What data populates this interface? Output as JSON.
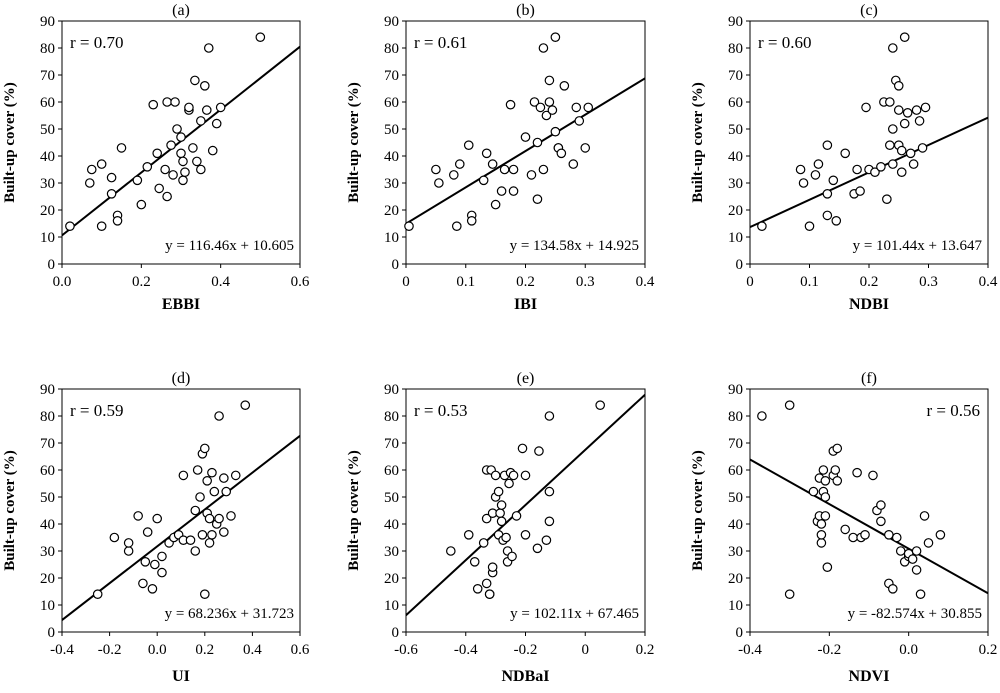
{
  "chart_data": [
    {
      "type": "scatter",
      "panel": "(a)",
      "xlabel": "EBBI",
      "ylabel": "Built-up cover (%)",
      "xlim": [
        0,
        0.6
      ],
      "ylim": [
        0,
        90
      ],
      "xticks": [
        "0.0",
        "0.2",
        "0.4",
        "0.6"
      ],
      "yticks": [
        "0",
        "10",
        "20",
        "30",
        "40",
        "50",
        "60",
        "70",
        "80",
        "90"
      ],
      "r_label": "r = 0.70",
      "equation": "y = 116.46x + 10.605",
      "slope": 116.46,
      "intercept": 10.605,
      "points": [
        [
          0.02,
          14
        ],
        [
          0.07,
          30
        ],
        [
          0.075,
          35
        ],
        [
          0.1,
          37
        ],
        [
          0.1,
          14
        ],
        [
          0.125,
          32
        ],
        [
          0.125,
          26
        ],
        [
          0.14,
          18
        ],
        [
          0.14,
          16
        ],
        [
          0.15,
          43
        ],
        [
          0.19,
          31
        ],
        [
          0.2,
          22
        ],
        [
          0.215,
          36
        ],
        [
          0.23,
          59
        ],
        [
          0.24,
          41
        ],
        [
          0.245,
          28
        ],
        [
          0.26,
          35
        ],
        [
          0.265,
          60
        ],
        [
          0.265,
          25
        ],
        [
          0.275,
          44
        ],
        [
          0.28,
          33
        ],
        [
          0.285,
          60
        ],
        [
          0.29,
          50
        ],
        [
          0.3,
          47
        ],
        [
          0.3,
          41
        ],
        [
          0.305,
          38
        ],
        [
          0.305,
          31
        ],
        [
          0.31,
          34
        ],
        [
          0.32,
          57
        ],
        [
          0.32,
          58
        ],
        [
          0.33,
          43
        ],
        [
          0.335,
          68
        ],
        [
          0.34,
          38
        ],
        [
          0.35,
          35
        ],
        [
          0.35,
          53
        ],
        [
          0.36,
          66
        ],
        [
          0.365,
          57
        ],
        [
          0.37,
          80
        ],
        [
          0.38,
          42
        ],
        [
          0.39,
          52
        ],
        [
          0.4,
          58
        ],
        [
          0.5,
          84
        ]
      ]
    },
    {
      "type": "scatter",
      "panel": "(b)",
      "xlabel": "IBI",
      "ylabel": "Built-up cover (%)",
      "xlim": [
        0,
        0.4
      ],
      "ylim": [
        0,
        90
      ],
      "xticks": [
        "0",
        "0.1",
        "0.2",
        "0.3",
        "0.4"
      ],
      "yticks": [
        "0",
        "10",
        "20",
        "30",
        "40",
        "50",
        "60",
        "70",
        "80",
        "90"
      ],
      "r_label": "r = 0.61",
      "equation": "y = 134.58x + 14.925",
      "slope": 134.58,
      "intercept": 14.925,
      "points": [
        [
          0.005,
          14
        ],
        [
          0.05,
          35
        ],
        [
          0.055,
          30
        ],
        [
          0.08,
          33
        ],
        [
          0.09,
          37
        ],
        [
          0.085,
          14
        ],
        [
          0.105,
          44
        ],
        [
          0.11,
          18
        ],
        [
          0.11,
          16
        ],
        [
          0.13,
          31
        ],
        [
          0.135,
          41
        ],
        [
          0.145,
          37
        ],
        [
          0.15,
          22
        ],
        [
          0.16,
          27
        ],
        [
          0.165,
          35
        ],
        [
          0.175,
          59
        ],
        [
          0.18,
          27
        ],
        [
          0.18,
          35
        ],
        [
          0.2,
          47
        ],
        [
          0.21,
          33
        ],
        [
          0.215,
          60
        ],
        [
          0.22,
          45
        ],
        [
          0.22,
          24
        ],
        [
          0.225,
          58
        ],
        [
          0.23,
          35
        ],
        [
          0.23,
          80
        ],
        [
          0.235,
          55
        ],
        [
          0.24,
          68
        ],
        [
          0.24,
          60
        ],
        [
          0.245,
          57
        ],
        [
          0.25,
          84
        ],
        [
          0.25,
          49
        ],
        [
          0.255,
          43
        ],
        [
          0.255,
          43
        ],
        [
          0.26,
          41
        ],
        [
          0.265,
          66
        ],
        [
          0.28,
          37
        ],
        [
          0.285,
          58
        ],
        [
          0.29,
          53
        ],
        [
          0.3,
          43
        ],
        [
          0.305,
          58
        ]
      ]
    },
    {
      "type": "scatter",
      "panel": "(c)",
      "xlabel": "NDBI",
      "ylabel": "Built-up cover (%)",
      "xlim": [
        0,
        0.4
      ],
      "ylim": [
        0,
        90
      ],
      "xticks": [
        "0",
        "0.1",
        "0.2",
        "0.3",
        "0.4"
      ],
      "yticks": [
        "0",
        "10",
        "20",
        "30",
        "40",
        "50",
        "60",
        "70",
        "80",
        "90"
      ],
      "r_label": "r = 0.60",
      "equation": "y = 101.44x + 13.647",
      "slope": 101.44,
      "intercept": 13.647,
      "points": [
        [
          0.02,
          14
        ],
        [
          0.085,
          35
        ],
        [
          0.09,
          30
        ],
        [
          0.1,
          14
        ],
        [
          0.11,
          33
        ],
        [
          0.115,
          37
        ],
        [
          0.13,
          44
        ],
        [
          0.13,
          18
        ],
        [
          0.13,
          26
        ],
        [
          0.14,
          31
        ],
        [
          0.145,
          16
        ],
        [
          0.16,
          41
        ],
        [
          0.175,
          26
        ],
        [
          0.18,
          35
        ],
        [
          0.185,
          27
        ],
        [
          0.195,
          58
        ],
        [
          0.2,
          35
        ],
        [
          0.21,
          34
        ],
        [
          0.22,
          36
        ],
        [
          0.225,
          60
        ],
        [
          0.23,
          24
        ],
        [
          0.235,
          60
        ],
        [
          0.235,
          44
        ],
        [
          0.24,
          50
        ],
        [
          0.24,
          80
        ],
        [
          0.24,
          37
        ],
        [
          0.245,
          68
        ],
        [
          0.25,
          66
        ],
        [
          0.25,
          44
        ],
        [
          0.25,
          57
        ],
        [
          0.255,
          34
        ],
        [
          0.255,
          42
        ],
        [
          0.26,
          84
        ],
        [
          0.26,
          52
        ],
        [
          0.265,
          56
        ],
        [
          0.27,
          41
        ],
        [
          0.275,
          37
        ],
        [
          0.28,
          57
        ],
        [
          0.285,
          53
        ],
        [
          0.29,
          43
        ],
        [
          0.295,
          58
        ]
      ]
    },
    {
      "type": "scatter",
      "panel": "(d)",
      "xlabel": "UI",
      "ylabel": "Built-up cover (%)",
      "xlim": [
        -0.4,
        0.6
      ],
      "ylim": [
        0,
        90
      ],
      "xticks": [
        "-0.4",
        "-0.2",
        "0.0",
        "0.2",
        "0.4",
        "0.6"
      ],
      "yticks": [
        "0",
        "10",
        "20",
        "30",
        "40",
        "50",
        "60",
        "70",
        "80",
        "90"
      ],
      "r_label": "r = 0.59",
      "equation": "y = 68.236x + 31.723",
      "slope": 68.236,
      "intercept": 31.723,
      "points": [
        [
          -0.25,
          14
        ],
        [
          -0.18,
          35
        ],
        [
          -0.12,
          30
        ],
        [
          -0.12,
          33
        ],
        [
          -0.08,
          43
        ],
        [
          -0.06,
          18
        ],
        [
          -0.05,
          26
        ],
        [
          -0.04,
          37
        ],
        [
          -0.02,
          16
        ],
        [
          -0.01,
          25
        ],
        [
          0.0,
          42
        ],
        [
          0.02,
          28
        ],
        [
          0.02,
          22
        ],
        [
          0.05,
          33
        ],
        [
          0.07,
          35
        ],
        [
          0.09,
          36
        ],
        [
          0.11,
          34
        ],
        [
          0.11,
          58
        ],
        [
          0.14,
          34
        ],
        [
          0.16,
          30
        ],
        [
          0.16,
          45
        ],
        [
          0.17,
          60
        ],
        [
          0.18,
          50
        ],
        [
          0.19,
          66
        ],
        [
          0.19,
          36
        ],
        [
          0.2,
          68
        ],
        [
          0.2,
          14
        ],
        [
          0.21,
          56
        ],
        [
          0.21,
          44
        ],
        [
          0.22,
          42
        ],
        [
          0.22,
          33
        ],
        [
          0.23,
          36
        ],
        [
          0.23,
          59
        ],
        [
          0.24,
          52
        ],
        [
          0.25,
          40
        ],
        [
          0.26,
          80
        ],
        [
          0.26,
          42
        ],
        [
          0.28,
          57
        ],
        [
          0.28,
          37
        ],
        [
          0.29,
          52
        ],
        [
          0.31,
          43
        ],
        [
          0.33,
          58
        ],
        [
          0.37,
          84
        ]
      ]
    },
    {
      "type": "scatter",
      "panel": "(e)",
      "xlabel": "NDBaI",
      "ylabel": "Built-up cover (%)",
      "xlim": [
        -0.6,
        0.2
      ],
      "ylim": [
        0,
        90
      ],
      "xticks": [
        "-0.6",
        "-0.4",
        "-0.2",
        "0",
        "0.2"
      ],
      "yticks": [
        "0",
        "10",
        "20",
        "30",
        "40",
        "50",
        "60",
        "70",
        "80",
        "90"
      ],
      "r_label": "r = 0.53",
      "equation": "y = 102.11x + 67.465",
      "slope": 102.11,
      "intercept": 67.465,
      "points": [
        [
          -0.45,
          30
        ],
        [
          -0.39,
          36
        ],
        [
          -0.37,
          26
        ],
        [
          -0.36,
          16
        ],
        [
          -0.34,
          33
        ],
        [
          -0.33,
          42
        ],
        [
          -0.33,
          60
        ],
        [
          -0.33,
          18
        ],
        [
          -0.32,
          14
        ],
        [
          -0.32,
          14
        ],
        [
          -0.315,
          60
        ],
        [
          -0.31,
          44
        ],
        [
          -0.31,
          22
        ],
        [
          -0.31,
          24
        ],
        [
          -0.3,
          50
        ],
        [
          -0.3,
          58
        ],
        [
          -0.29,
          36
        ],
        [
          -0.29,
          52
        ],
        [
          -0.285,
          44
        ],
        [
          -0.28,
          41
        ],
        [
          -0.28,
          47
        ],
        [
          -0.275,
          34
        ],
        [
          -0.27,
          58
        ],
        [
          -0.265,
          35
        ],
        [
          -0.26,
          30
        ],
        [
          -0.26,
          26
        ],
        [
          -0.255,
          55
        ],
        [
          -0.25,
          59
        ],
        [
          -0.245,
          28
        ],
        [
          -0.24,
          58
        ],
        [
          -0.23,
          43
        ],
        [
          -0.21,
          68
        ],
        [
          -0.2,
          36
        ],
        [
          -0.2,
          58
        ],
        [
          -0.16,
          31
        ],
        [
          -0.155,
          67
        ],
        [
          -0.13,
          34
        ],
        [
          -0.12,
          41
        ],
        [
          -0.12,
          52
        ],
        [
          -0.12,
          80
        ],
        [
          0.05,
          84
        ]
      ]
    },
    {
      "type": "scatter",
      "panel": "(f)",
      "xlabel": "NDVI",
      "ylabel": "Built-up cover (%)",
      "xlim": [
        -0.4,
        0.2
      ],
      "ylim": [
        0,
        90
      ],
      "xticks": [
        "-0.4",
        "-0.2",
        "0.0",
        "0.2"
      ],
      "yticks": [
        "0",
        "10",
        "20",
        "30",
        "40",
        "50",
        "60",
        "70",
        "80",
        "90"
      ],
      "r_label": "r = 0.56",
      "equation": "y = -82.574x + 30.855",
      "slope": -82.574,
      "intercept": 30.855,
      "points": [
        [
          -0.37,
          80
        ],
        [
          -0.3,
          84
        ],
        [
          -0.3,
          14
        ],
        [
          -0.24,
          52
        ],
        [
          -0.23,
          41
        ],
        [
          -0.225,
          57
        ],
        [
          -0.225,
          43
        ],
        [
          -0.22,
          40
        ],
        [
          -0.22,
          33
        ],
        [
          -0.22,
          36
        ],
        [
          -0.215,
          60
        ],
        [
          -0.215,
          52
        ],
        [
          -0.21,
          43
        ],
        [
          -0.21,
          56
        ],
        [
          -0.21,
          50
        ],
        [
          -0.205,
          24
        ],
        [
          -0.19,
          67
        ],
        [
          -0.19,
          58
        ],
        [
          -0.185,
          60
        ],
        [
          -0.18,
          68
        ],
        [
          -0.18,
          56
        ],
        [
          -0.16,
          38
        ],
        [
          -0.14,
          35
        ],
        [
          -0.13,
          59
        ],
        [
          -0.12,
          35
        ],
        [
          -0.11,
          36
        ],
        [
          -0.09,
          58
        ],
        [
          -0.08,
          45
        ],
        [
          -0.07,
          47
        ],
        [
          -0.07,
          41
        ],
        [
          -0.05,
          36
        ],
        [
          -0.05,
          18
        ],
        [
          -0.04,
          16
        ],
        [
          -0.03,
          35
        ],
        [
          -0.02,
          30
        ],
        [
          -0.01,
          26
        ],
        [
          0.0,
          28
        ],
        [
          0.0,
          29
        ],
        [
          0.01,
          27
        ],
        [
          0.02,
          30
        ],
        [
          0.02,
          23
        ],
        [
          0.03,
          14
        ],
        [
          0.04,
          43
        ],
        [
          0.05,
          33
        ],
        [
          0.08,
          36
        ]
      ]
    }
  ]
}
